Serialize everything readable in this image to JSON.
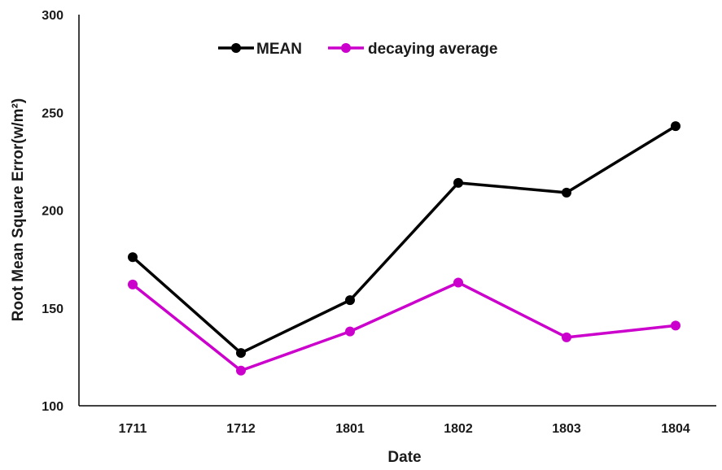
{
  "chart_data": {
    "type": "line",
    "xlabel": "Date",
    "ylabel": "Root Mean Square Error(w/m²)",
    "categories": [
      "1711",
      "1712",
      "1801",
      "1802",
      "1803",
      "1804"
    ],
    "ylim": [
      100,
      300
    ],
    "yticks": [
      "100",
      "150",
      "200",
      "250",
      "300"
    ],
    "grid": false,
    "legend": "top-left",
    "series": [
      {
        "name": "MEAN",
        "color": "#000000",
        "values": [
          176,
          127,
          154,
          214,
          209,
          243
        ]
      },
      {
        "name": "decaying average",
        "color": "#cc00cc",
        "values": [
          162,
          118,
          138,
          163,
          135,
          141
        ]
      }
    ]
  }
}
